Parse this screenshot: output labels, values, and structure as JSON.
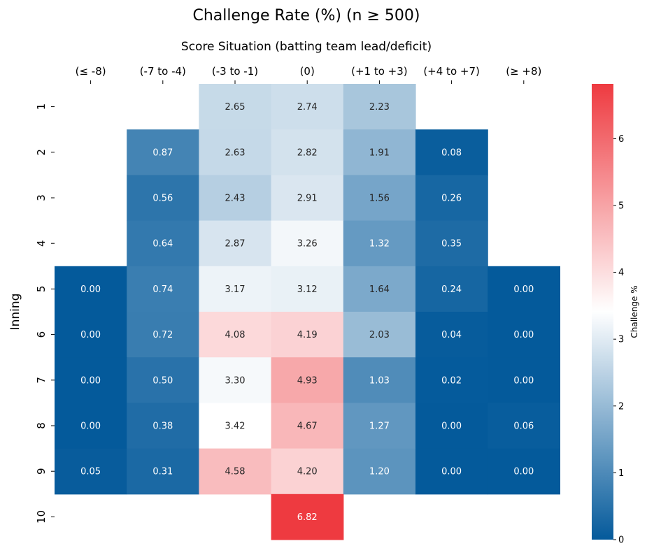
{
  "chart_data": {
    "type": "heatmap",
    "title": "Challenge Rate (%) (n ≥ 500)",
    "xlabel": "Score Situation (batting team lead/deficit)",
    "ylabel": "Inning",
    "x_categories": [
      "(≤ -8)",
      "(-7 to -4)",
      "(-3 to -1)",
      "(0)",
      "(+1 to +3)",
      "(+4 to +7)",
      "(≥ +8)"
    ],
    "y_categories": [
      "1",
      "2",
      "3",
      "4",
      "5",
      "6",
      "7",
      "8",
      "9",
      "10"
    ],
    "values": [
      [
        null,
        null,
        2.65,
        2.74,
        2.23,
        null,
        null
      ],
      [
        null,
        0.87,
        2.63,
        2.82,
        1.91,
        0.08,
        null
      ],
      [
        null,
        0.56,
        2.43,
        2.91,
        1.56,
        0.26,
        null
      ],
      [
        null,
        0.64,
        2.87,
        3.26,
        1.32,
        0.35,
        null
      ],
      [
        0.0,
        0.74,
        3.17,
        3.12,
        1.64,
        0.24,
        0.0
      ],
      [
        0.0,
        0.72,
        4.08,
        4.19,
        2.03,
        0.04,
        0.0
      ],
      [
        0.0,
        0.5,
        3.3,
        4.93,
        1.03,
        0.02,
        0.0
      ],
      [
        0.0,
        0.38,
        3.42,
        4.67,
        1.27,
        0.0,
        0.06
      ],
      [
        0.05,
        0.31,
        4.58,
        4.2,
        1.2,
        0.0,
        0.0
      ],
      [
        null,
        null,
        null,
        6.82,
        null,
        null,
        null
      ]
    ],
    "value_format": "2 decimals",
    "colorbar": {
      "label": "Challenge %",
      "range": [
        0,
        6.82
      ],
      "center": 3.42,
      "ticks": [
        0,
        1,
        2,
        3,
        4,
        5,
        6
      ],
      "colors": {
        "low": "#045a9b",
        "mid": "#ffffff",
        "high": "#ee3a40"
      }
    }
  }
}
